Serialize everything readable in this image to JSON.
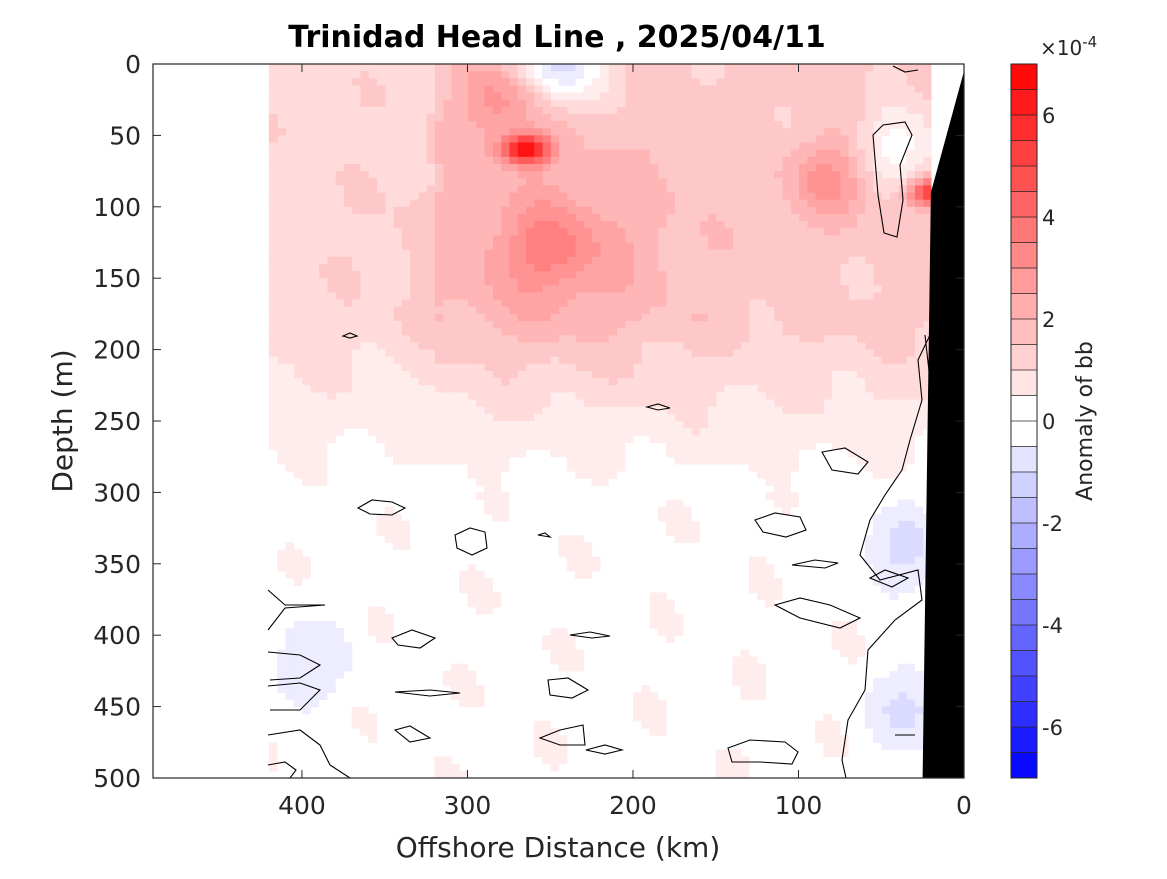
{
  "chart_data": {
    "type": "heatmap",
    "subtype": "filled-contour section",
    "title": "Trinidad Head Line , 2025/04/11",
    "xlabel": "Offshore Distance (km)",
    "ylabel": "Depth (m)",
    "xlim": [
      490,
      0
    ],
    "x_reversed": true,
    "ylim": [
      0,
      500
    ],
    "y_reversed": true,
    "x_ticks": [
      400,
      300,
      200,
      100,
      0
    ],
    "y_ticks": [
      0,
      50,
      100,
      150,
      200,
      250,
      300,
      350,
      400,
      450,
      500
    ],
    "data_extent_x": [
      420,
      20
    ],
    "colorbar": {
      "label": "Anomaly of bb",
      "exponent_label": "×10",
      "exponent_power": "-4",
      "range": [
        -7,
        7
      ],
      "step": 0.5,
      "ticks": [
        -6,
        -4,
        -2,
        0,
        2,
        4,
        6
      ],
      "tick_labels": [
        "-6",
        "-4",
        "-2",
        "0",
        "2",
        "4",
        "6"
      ],
      "colormap": "blue-white-red",
      "negative_color": "#0000ff",
      "positive_color": "#ff0000",
      "zero_color": "#ffffff"
    },
    "anomaly_features": [
      {
        "x": 265,
        "depth": 60,
        "value": 6.5
      },
      {
        "x": 20,
        "depth": 90,
        "value": 5.5
      },
      {
        "x": 280,
        "depth": 25,
        "value": 3.0
      },
      {
        "x": 80,
        "depth": 80,
        "value": 3.0
      },
      {
        "x": 250,
        "depth": 130,
        "value": 2.5
      },
      {
        "x": 245,
        "depth": 0,
        "value": -2.5
      },
      {
        "x": 40,
        "depth": 60,
        "value": -1.5
      },
      {
        "x": 40,
        "depth": 340,
        "value": -1.0
      },
      {
        "x": 30,
        "depth": 450,
        "value": -1.0
      },
      {
        "x": 400,
        "depth": 420,
        "value": -0.8
      }
    ],
    "bathymetry": {
      "fill": "#000000",
      "points": [
        [
          0,
          0
        ],
        [
          0,
          500
        ],
        [
          25,
          500
        ],
        [
          20,
          90
        ],
        [
          0,
          5
        ]
      ]
    },
    "zero_contour_color": "#000000"
  }
}
